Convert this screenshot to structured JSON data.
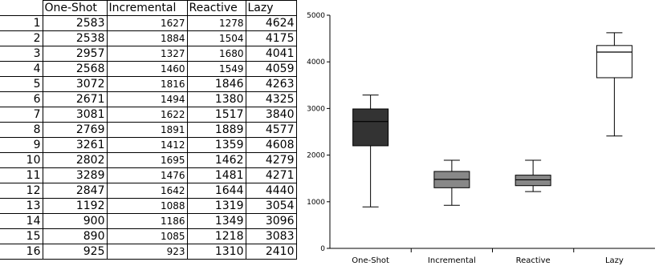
{
  "table": {
    "columns": [
      "One-Shot",
      "Incremental",
      "Reactive",
      "Lazy"
    ],
    "rows": [
      {
        "n": "1",
        "v": [
          "2583",
          "1627",
          "1278",
          "4624"
        ]
      },
      {
        "n": "2",
        "v": [
          "2538",
          "1884",
          "1504",
          "4175"
        ]
      },
      {
        "n": "3",
        "v": [
          "2957",
          "1327",
          "1680",
          "4041"
        ]
      },
      {
        "n": "4",
        "v": [
          "2568",
          "1460",
          "1549",
          "4059"
        ]
      },
      {
        "n": "5",
        "v": [
          "3072",
          "1816",
          "1846",
          "4263"
        ]
      },
      {
        "n": "6",
        "v": [
          "2671",
          "1494",
          "1380",
          "4325"
        ]
      },
      {
        "n": "7",
        "v": [
          "3081",
          "1622",
          "1517",
          "3840"
        ]
      },
      {
        "n": "8",
        "v": [
          "2769",
          "1891",
          "1889",
          "4577"
        ]
      },
      {
        "n": "9",
        "v": [
          "3261",
          "1412",
          "1359",
          "4608"
        ]
      },
      {
        "n": "10",
        "v": [
          "2802",
          "1695",
          "1462",
          "4279"
        ]
      },
      {
        "n": "11",
        "v": [
          "3289",
          "1476",
          "1481",
          "4271"
        ]
      },
      {
        "n": "12",
        "v": [
          "2847",
          "1642",
          "1644",
          "4440"
        ]
      },
      {
        "n": "13",
        "v": [
          "1192",
          "1088",
          "1319",
          "3054"
        ]
      },
      {
        "n": "14",
        "v": [
          "900",
          "1186",
          "1349",
          "3096"
        ]
      },
      {
        "n": "15",
        "v": [
          "890",
          "1085",
          "1218",
          "3083"
        ]
      },
      {
        "n": "16",
        "v": [
          "925",
          "923",
          "1310",
          "2410"
        ]
      }
    ]
  },
  "chart_data": {
    "type": "box",
    "categories": [
      "One-Shot",
      "Incremental",
      "Reactive",
      "Lazy"
    ],
    "yticks": [
      0,
      1000,
      2000,
      3000,
      4000,
      5000
    ],
    "ylim": [
      0,
      5000
    ],
    "boxes": [
      {
        "min": 890,
        "q1": 2200,
        "median": 2720,
        "q3": 2990,
        "max": 3289,
        "color": "#333333"
      },
      {
        "min": 923,
        "q1": 1300,
        "median": 1480,
        "q3": 1650,
        "max": 1891,
        "color": "#888888"
      },
      {
        "min": 1218,
        "q1": 1345,
        "median": 1470,
        "q3": 1570,
        "max": 1889,
        "color": "#888888"
      },
      {
        "min": 2410,
        "q1": 3660,
        "median": 4210,
        "q3": 4350,
        "max": 4624,
        "color": "#ffffff"
      }
    ]
  }
}
